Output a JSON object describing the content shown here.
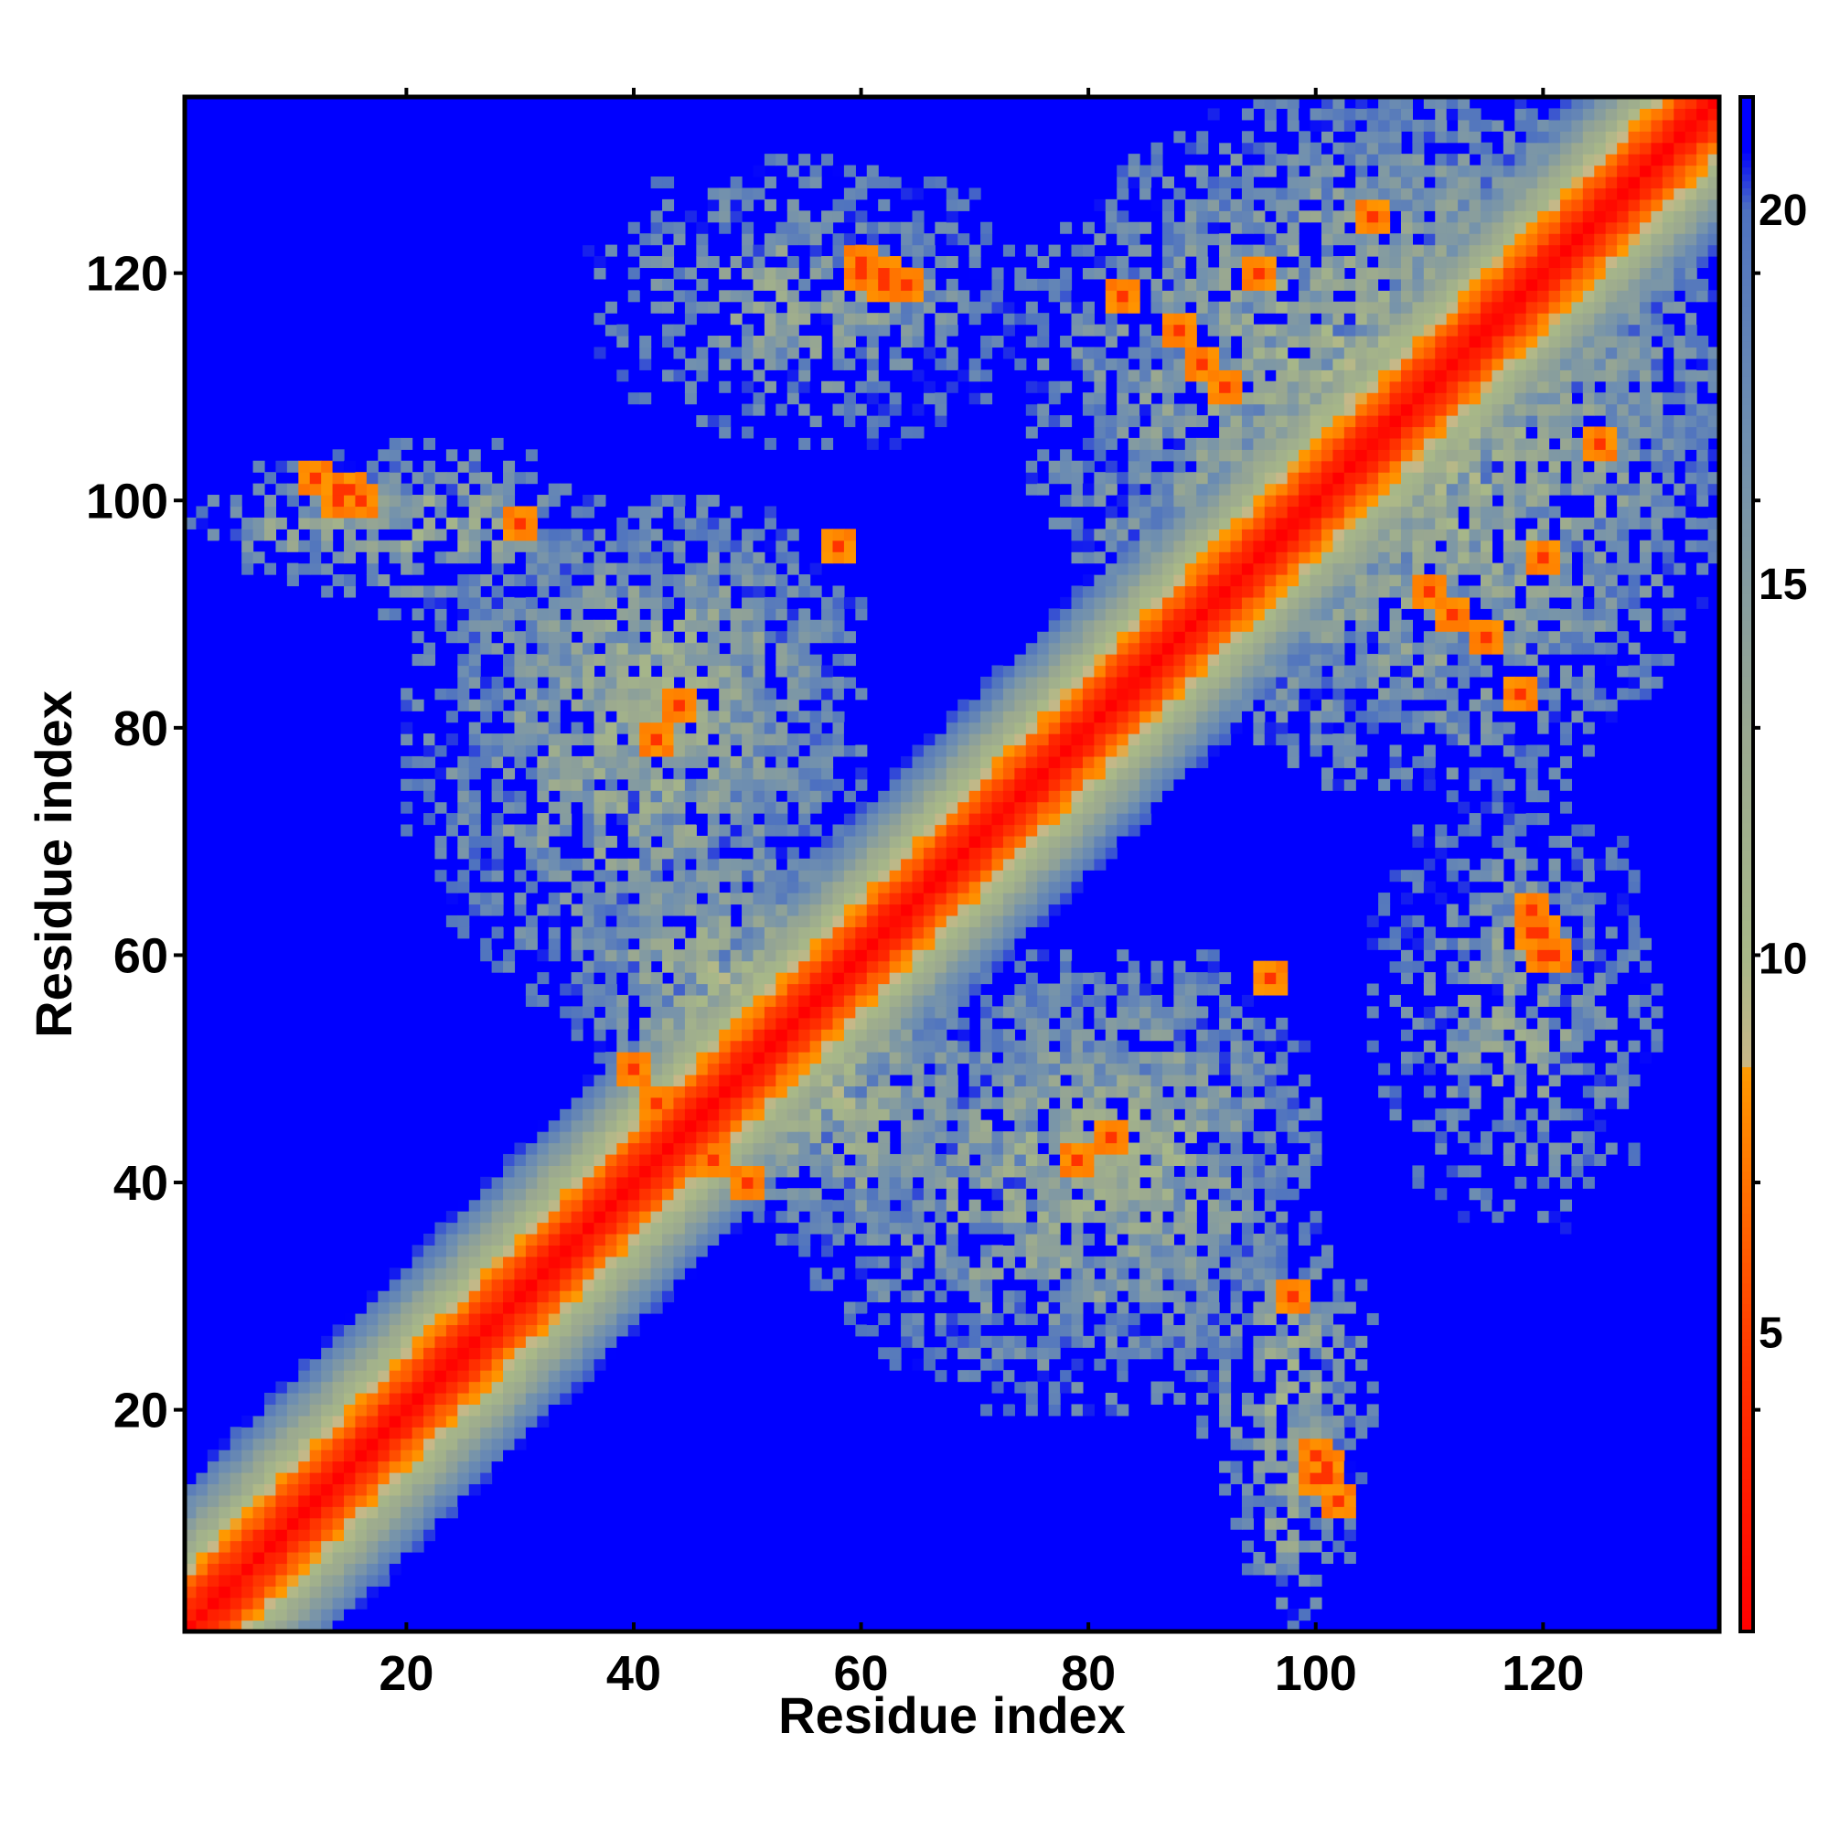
{
  "chart_data": {
    "type": "heatmap",
    "title": "",
    "xlabel": "Residue index",
    "ylabel": "Residue index",
    "n_residues": 135,
    "xlim": [
      0.5,
      135.5
    ],
    "ylim": [
      0.5,
      135.5
    ],
    "x_ticks": [
      20,
      40,
      60,
      80,
      100,
      120
    ],
    "y_ticks": [
      20,
      40,
      60,
      80,
      100,
      120
    ],
    "grid": false,
    "legend": "colorbar-right",
    "colorbar": {
      "range": [
        1,
        21.5
      ],
      "ticks": [
        5,
        10,
        15,
        20
      ],
      "stops": [
        {
          "value": 1,
          "color": "#ff0000"
        },
        {
          "value": 4.5,
          "color": "#ff3300"
        },
        {
          "value": 8.5,
          "color": "#ff9900"
        },
        {
          "value": 8.6,
          "color": "#c8b888"
        },
        {
          "value": 10,
          "color": "#a8b888"
        },
        {
          "value": 13,
          "color": "#9aa890"
        },
        {
          "value": 17,
          "color": "#6f8fb0"
        },
        {
          "value": 20,
          "color": "#4e72c0"
        },
        {
          "value": 20.8,
          "color": "#0000ff"
        }
      ],
      "out_of_range_color": "#0000ff"
    },
    "contact_regions": [
      {
        "name": "diagonal",
        "value_model": "0.5 + 1.5*|i-j|",
        "band": 14
      },
      {
        "i": [
          1,
          25
        ],
        "j": [
          93,
          103
        ],
        "min": 5,
        "density": 0.45
      },
      {
        "i": [
          45,
          80
        ],
        "j": [
          105,
          130
        ],
        "min": 10,
        "density": 0.55
      },
      {
        "i": [
          25,
          60
        ],
        "j": [
          70,
          100
        ],
        "min": 5,
        "density": 0.6
      },
      {
        "i": [
          35,
          60
        ],
        "j": [
          45,
          70
        ],
        "min": 4,
        "density": 0.7
      },
      {
        "i": [
          55,
          100
        ],
        "j": [
          20,
          60
        ],
        "min": 5,
        "density": 0.55
      },
      {
        "i": [
          75,
          135
        ],
        "j": [
          85,
          135
        ],
        "min": 4,
        "density": 0.55
      },
      {
        "i": [
          90,
          105
        ],
        "j": [
          10,
          35
        ],
        "min": 5,
        "density": 0.5
      },
      {
        "i": [
          105,
          130
        ],
        "j": [
          35,
          75
        ],
        "min": 6,
        "density": 0.5
      }
    ],
    "hotspots": [
      {
        "i": 12,
        "j": 102
      },
      {
        "i": 15,
        "j": 101
      },
      {
        "i": 14,
        "j": 100
      },
      {
        "i": 62,
        "j": 120
      },
      {
        "i": 60,
        "j": 121
      },
      {
        "i": 64,
        "j": 119
      },
      {
        "i": 42,
        "j": 79
      },
      {
        "i": 44,
        "j": 82
      },
      {
        "i": 40,
        "j": 50
      },
      {
        "i": 46,
        "j": 48
      },
      {
        "i": 47,
        "j": 42
      },
      {
        "i": 79,
        "j": 42
      },
      {
        "i": 82,
        "j": 44
      },
      {
        "i": 100,
        "j": 16
      },
      {
        "i": 101,
        "j": 14
      },
      {
        "i": 102,
        "j": 12
      },
      {
        "i": 96,
        "j": 58
      },
      {
        "i": 98,
        "j": 30
      },
      {
        "i": 119,
        "j": 62
      },
      {
        "i": 120,
        "j": 60
      },
      {
        "i": 110,
        "j": 92
      },
      {
        "i": 115,
        "j": 88
      },
      {
        "i": 118,
        "j": 83
      },
      {
        "i": 90,
        "j": 112
      },
      {
        "i": 95,
        "j": 120
      },
      {
        "i": 105,
        "j": 125
      }
    ]
  }
}
